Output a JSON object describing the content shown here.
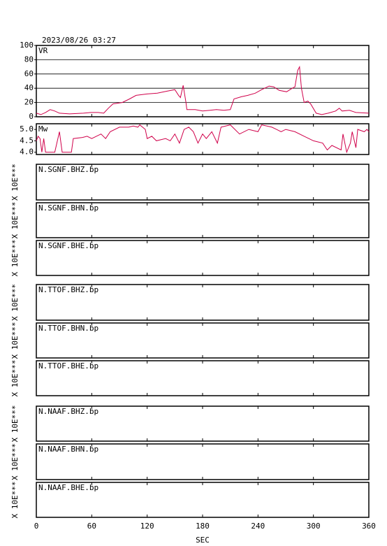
{
  "title": "2023/08/26 03:27",
  "x_axis": {
    "xlim": [
      0,
      360
    ],
    "xticks": [
      0,
      60,
      120,
      180,
      240,
      300,
      360
    ],
    "xlabel": "SEC"
  },
  "chart_data": [
    {
      "type": "line",
      "label": "VR",
      "color": "#d0004a",
      "grid": true,
      "ylim": [
        0,
        100
      ],
      "yticks": [
        0,
        20,
        40,
        60,
        80,
        100
      ],
      "x": [
        0,
        5,
        10,
        15,
        20,
        25,
        36,
        51,
        59,
        67,
        73,
        78,
        83,
        93,
        101,
        108,
        120,
        131,
        142,
        146,
        150,
        154,
        156,
        159,
        162,
        163,
        172,
        180,
        188,
        195,
        203,
        210,
        214,
        222,
        229,
        237,
        244,
        252,
        257,
        263,
        271,
        277,
        280,
        283,
        285,
        287,
        290,
        294,
        297,
        303,
        309,
        316,
        324,
        328,
        331,
        339,
        346,
        360
      ],
      "values": [
        5,
        3,
        6,
        10,
        8,
        5,
        4,
        5,
        6,
        6,
        5,
        12,
        18,
        20,
        25,
        30,
        32,
        33,
        36,
        37,
        38,
        30,
        27,
        44,
        20,
        10,
        10,
        8,
        9,
        10,
        9,
        10,
        25,
        28,
        30,
        33,
        38,
        43,
        42,
        37,
        35,
        40,
        42,
        65,
        70,
        40,
        20,
        22,
        18,
        5,
        3,
        5,
        8,
        12,
        8,
        9,
        6,
        5
      ]
    },
    {
      "type": "line",
      "label": "Mw",
      "color": "#d0004a",
      "grid": false,
      "ylim": [
        3.9,
        5.25
      ],
      "yticks": [
        {
          "value": 4.0,
          "label": "4.0"
        },
        4.5,
        {
          "value": 5.0,
          "label": "5.0"
        }
      ],
      "x": [
        0,
        2,
        4,
        6,
        8,
        10,
        20,
        25,
        28,
        38,
        40,
        50,
        55,
        60,
        70,
        75,
        80,
        90,
        100,
        105,
        110,
        112,
        118,
        120,
        125,
        130,
        140,
        145,
        150,
        155,
        160,
        165,
        170,
        175,
        180,
        184,
        190,
        196,
        200,
        210,
        220,
        230,
        240,
        244,
        255,
        260,
        265,
        270,
        280,
        290,
        295,
        300,
        310,
        315,
        320,
        330,
        332,
        336,
        340,
        342,
        346,
        348,
        355,
        358,
        360
      ],
      "values": [
        4.5,
        4.7,
        4.6,
        4.0,
        4.6,
        4.0,
        4.0,
        4.9,
        4.0,
        4.0,
        4.6,
        4.65,
        4.7,
        4.6,
        4.8,
        4.6,
        4.9,
        5.1,
        5.1,
        5.15,
        5.1,
        5.2,
        5.0,
        4.6,
        4.7,
        4.5,
        4.6,
        4.5,
        4.8,
        4.4,
        5.0,
        5.1,
        4.9,
        4.4,
        4.8,
        4.6,
        4.9,
        4.4,
        5.1,
        5.2,
        4.8,
        5.0,
        4.9,
        5.2,
        5.1,
        5.0,
        4.9,
        5.0,
        4.9,
        4.7,
        4.6,
        4.5,
        4.4,
        4.1,
        4.3,
        4.1,
        4.8,
        4.0,
        4.4,
        4.9,
        4.2,
        5.0,
        4.9,
        5.0,
        4.9
      ]
    },
    {
      "type": "trace",
      "label": "N.SGNF.BHZ.bp",
      "ylabel": "X 10E***"
    },
    {
      "type": "trace",
      "label": "N.SGNF.BHN.bp",
      "ylabel": "X 10E***"
    },
    {
      "type": "trace",
      "label": "N.SGNF.BHE.bp",
      "ylabel": "X 10E***"
    },
    {
      "type": "trace",
      "label": "N.TTOF.BHZ.bp",
      "ylabel": "X 10E***"
    },
    {
      "type": "trace",
      "label": "N.TTOF.BHN.bp",
      "ylabel": "X 10E***"
    },
    {
      "type": "trace",
      "label": "N.TTOF.BHE.bp",
      "ylabel": "X 10E***"
    },
    {
      "type": "trace",
      "label": "N.NAAF.BHZ.bp",
      "ylabel": "X 10E***"
    },
    {
      "type": "trace",
      "label": "N.NAAF.BHN.bp",
      "ylabel": "X 10E***"
    },
    {
      "type": "trace",
      "label": "N.NAAF.BHE.bp",
      "ylabel": "X 10E***"
    }
  ]
}
